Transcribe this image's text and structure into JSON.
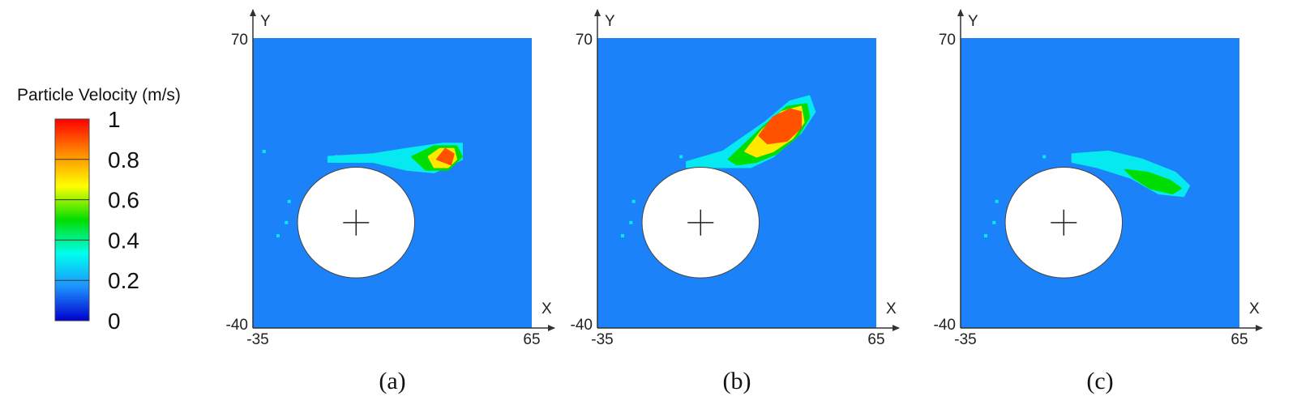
{
  "colorbar": {
    "title": "Particle Velocity (m/s)",
    "ticks": [
      "1",
      "0.8",
      "0.6",
      "0.4",
      "0.2",
      "0"
    ],
    "min": 0,
    "max": 1,
    "colors": [
      "#ff0000",
      "#ff8800",
      "#ffff00",
      "#00dd00",
      "#00ffee",
      "#1e90ff",
      "#0000cc"
    ]
  },
  "chart_data": [
    {
      "type": "heatmap",
      "panel_label": "(a)",
      "xlabel": "X",
      "ylabel": "Y",
      "xlim": [
        -35,
        65
      ],
      "ylim": [
        -40,
        70
      ],
      "x_ticks": [
        "-35",
        "65"
      ],
      "y_ticks": [
        "70",
        "-40"
      ],
      "background_value": 0.15,
      "cylinder": {
        "center": [
          2,
          0
        ],
        "radius": 21
      },
      "features": [
        {
          "value": 0.3,
          "points": [
            [
              -8,
              25
            ],
            [
              8,
              26
            ],
            [
              20,
              28
            ],
            [
              33,
              30
            ],
            [
              40,
              30
            ],
            [
              40,
              24
            ],
            [
              30,
              19
            ],
            [
              20,
              20
            ],
            [
              8,
              23
            ],
            [
              -8,
              23
            ]
          ]
        },
        {
          "value": 0.5,
          "points": [
            [
              22,
              25
            ],
            [
              30,
              29
            ],
            [
              38,
              29
            ],
            [
              40,
              25
            ],
            [
              35,
              20
            ],
            [
              27,
              20
            ]
          ]
        },
        {
          "value": 0.7,
          "points": [
            [
              28,
              25
            ],
            [
              32,
              28
            ],
            [
              37,
              28
            ],
            [
              38,
              24
            ],
            [
              35,
              21
            ],
            [
              30,
              21
            ]
          ]
        },
        {
          "value": 0.9,
          "points": [
            [
              31,
              24
            ],
            [
              34,
              28
            ],
            [
              37,
              26
            ],
            [
              36,
              22
            ]
          ]
        }
      ]
    },
    {
      "type": "heatmap",
      "panel_label": "(b)",
      "xlabel": "X",
      "ylabel": "Y",
      "xlim": [
        -35,
        65
      ],
      "ylim": [
        -40,
        70
      ],
      "x_ticks": [
        "-35",
        "65"
      ],
      "y_ticks": [
        "70",
        "-40"
      ],
      "background_value": 0.15,
      "cylinder": {
        "center": [
          2,
          0
        ],
        "radius": 21
      },
      "features": [
        {
          "value": 0.3,
          "points": [
            [
              -3,
              23
            ],
            [
              10,
              27
            ],
            [
              25,
              38
            ],
            [
              34,
              46
            ],
            [
              41,
              48
            ],
            [
              43,
              42
            ],
            [
              38,
              34
            ],
            [
              28,
              25
            ],
            [
              20,
              21
            ],
            [
              8,
              21
            ],
            [
              -3,
              21
            ]
          ]
        },
        {
          "value": 0.5,
          "points": [
            [
              12,
              24
            ],
            [
              24,
              36
            ],
            [
              33,
              44
            ],
            [
              40,
              45
            ],
            [
              41,
              40
            ],
            [
              37,
              33
            ],
            [
              29,
              26
            ],
            [
              22,
              23
            ],
            [
              15,
              22
            ]
          ]
        },
        {
          "value": 0.7,
          "points": [
            [
              18,
              27
            ],
            [
              24,
              35
            ],
            [
              31,
              42
            ],
            [
              38,
              44
            ],
            [
              39,
              38
            ],
            [
              35,
              32
            ],
            [
              28,
              27
            ],
            [
              22,
              25
            ]
          ]
        },
        {
          "value": 0.9,
          "points": [
            [
              23,
              33
            ],
            [
              28,
              40
            ],
            [
              34,
              43
            ],
            [
              38,
              42
            ],
            [
              38,
              36
            ],
            [
              33,
              31
            ],
            [
              26,
              30
            ]
          ]
        }
      ]
    },
    {
      "type": "heatmap",
      "panel_label": "(c)",
      "xlabel": "X",
      "ylabel": "Y",
      "xlim": [
        -35,
        65
      ],
      "ylim": [
        -40,
        70
      ],
      "x_ticks": [
        "-35",
        "65"
      ],
      "y_ticks": [
        "70",
        "-40"
      ],
      "background_value": 0.15,
      "cylinder": {
        "center": [
          2,
          0
        ],
        "radius": 21
      },
      "features": [
        {
          "value": 0.3,
          "points": [
            [
              5,
              26
            ],
            [
              18,
              27
            ],
            [
              30,
              24
            ],
            [
              42,
              19
            ],
            [
              47,
              14
            ],
            [
              45,
              10
            ],
            [
              36,
              11
            ],
            [
              26,
              17
            ],
            [
              14,
              21
            ],
            [
              5,
              23
            ]
          ]
        },
        {
          "value": 0.5,
          "points": [
            [
              24,
              20
            ],
            [
              32,
              19
            ],
            [
              40,
              16
            ],
            [
              44,
              13
            ],
            [
              41,
              11
            ],
            [
              33,
              13
            ],
            [
              27,
              17
            ]
          ]
        }
      ]
    }
  ]
}
